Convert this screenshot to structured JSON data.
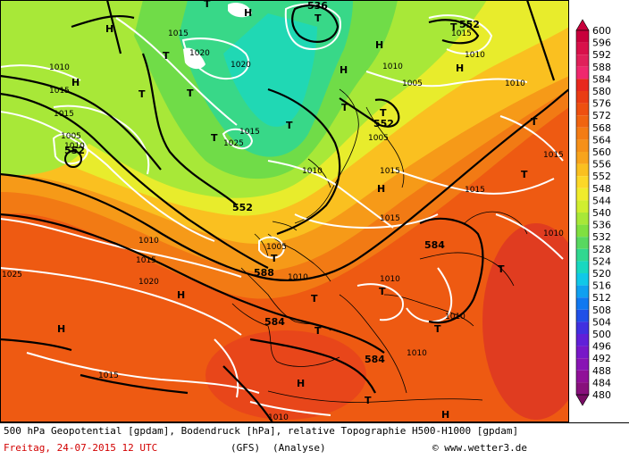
{
  "caption": "500 hPa Geopotential [gpdam], Bodendruck [hPa], relative Topographie H500-H1000 [gpdam]",
  "date_line": "Freitag, 24-07-2015  12 UTC",
  "model": "(GFS)",
  "analysis": "(Analyse)",
  "credit": "© www.wetter3.de",
  "legend": {
    "levels": [
      "600",
      "596",
      "592",
      "588",
      "584",
      "580",
      "576",
      "572",
      "568",
      "564",
      "560",
      "556",
      "552",
      "548",
      "544",
      "540",
      "536",
      "532",
      "528",
      "524",
      "520",
      "516",
      "512",
      "508",
      "504",
      "500",
      "496",
      "492",
      "488",
      "484",
      "480"
    ],
    "colors": [
      "#c8003c",
      "#d8104a",
      "#e0205a",
      "#f0286e",
      "#e8281e",
      "#ea3c14",
      "#ee5010",
      "#f06410",
      "#f47c14",
      "#f69018",
      "#f8a41c",
      "#fac020",
      "#fcd828",
      "#f0ec2c",
      "#d0ee30",
      "#a8e838",
      "#80e040",
      "#58d860",
      "#30d890",
      "#18d8c0",
      "#10c8e8",
      "#10a0f0",
      "#1078f0",
      "#2050e8",
      "#4030e0",
      "#6020d8",
      "#7818c8",
      "#8814b4",
      "#901098",
      "#88107c",
      "#780c64"
    ]
  },
  "labels": {
    "pressure": [
      "1015",
      "1020",
      "1020",
      "1015",
      "1010",
      "1005",
      "1010",
      "1015",
      "1005",
      "1010",
      "1015",
      "1010",
      "1015",
      "1010",
      "1015",
      "1010",
      "1015",
      "1005",
      "1015",
      "1010",
      "1010",
      "1015",
      "1020",
      "1010",
      "1025",
      "1010",
      "1025",
      "1010",
      "1015",
      "1010",
      "1005",
      "1015",
      "1010"
    ],
    "geopotential": [
      "536",
      "552",
      "552",
      "552",
      "552",
      "584",
      "584",
      "588",
      "584"
    ],
    "highs": [
      "H",
      "H",
      "H",
      "H",
      "H",
      "H",
      "H",
      "H",
      "H",
      "H",
      "H"
    ],
    "lows": [
      "T",
      "T",
      "T",
      "T",
      "T",
      "T",
      "T",
      "T",
      "T",
      "T",
      "T",
      "T",
      "T",
      "T",
      "T",
      "T",
      "T",
      "T",
      "T"
    ]
  },
  "colors": {
    "sea_ice": "#ffffff",
    "coast": "#000000",
    "geopotential_line": "#000000",
    "pressure_line": "#ffffff"
  }
}
